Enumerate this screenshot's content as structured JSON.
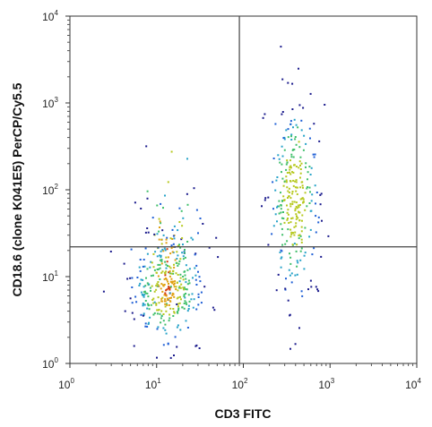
{
  "chart_data": {
    "type": "scatter",
    "xlabel": "CD3 FITC",
    "ylabel": "CD18.6 (clone K041E5) PerCP/Cy5.5",
    "x_scale": "log",
    "y_scale": "log",
    "xlim": [
      1,
      10000
    ],
    "ylim": [
      1,
      10000
    ],
    "x_ticks": [
      {
        "base": "10",
        "exp": "0",
        "value": 1
      },
      {
        "base": "10",
        "exp": "1",
        "value": 10
      },
      {
        "base": "10",
        "exp": "2",
        "value": 100
      },
      {
        "base": "10",
        "exp": "3",
        "value": 1000
      },
      {
        "base": "10",
        "exp": "4",
        "value": 10000
      }
    ],
    "y_ticks": [
      {
        "base": "10",
        "exp": "0",
        "value": 1
      },
      {
        "base": "10",
        "exp": "1",
        "value": 10
      },
      {
        "base": "10",
        "exp": "2",
        "value": 100
      },
      {
        "base": "10",
        "exp": "3",
        "value": 1000
      },
      {
        "base": "10",
        "exp": "4",
        "value": 10000
      }
    ],
    "quadrant_gate": {
      "x": 90,
      "y": 22
    },
    "grid": false,
    "density_colormap": [
      "#1a1a8c",
      "#1f5fd6",
      "#27a3c9",
      "#3fbf6a",
      "#b6c81e",
      "#e0a010",
      "#d23a0c"
    ],
    "populations": [
      {
        "x_center": 13,
        "y_center": 7,
        "count": 430
      },
      {
        "x_center": 380,
        "y_center": 60,
        "count": 310
      }
    ]
  }
}
